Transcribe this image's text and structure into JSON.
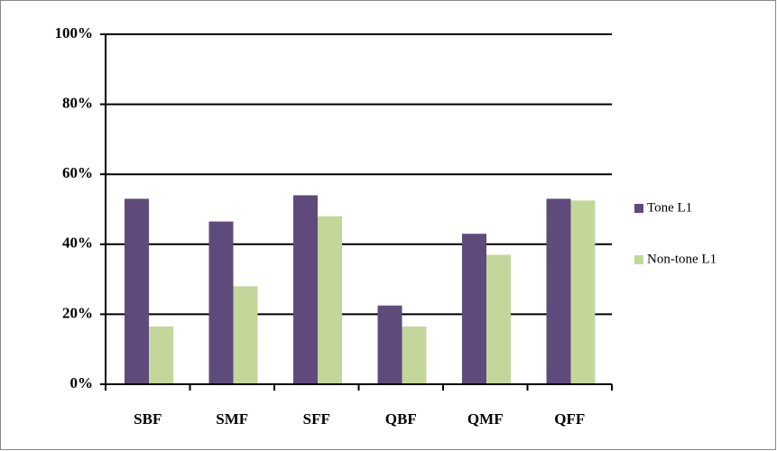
{
  "chart_data": {
    "type": "bar",
    "categories": [
      "SBF",
      "SMF",
      "SFF",
      "QBF",
      "QMF",
      "QFF"
    ],
    "series": [
      {
        "name": "Tone L1",
        "color": "#5f4b7b",
        "values": [
          53,
          46.5,
          54,
          22.5,
          43,
          53
        ]
      },
      {
        "name": "Non-tone L1",
        "color": "#c4d79b",
        "values": [
          16.5,
          28,
          48,
          16.5,
          37,
          52.5
        ]
      }
    ],
    "ylim": [
      0,
      100
    ],
    "yticks": [
      {
        "value": 0,
        "label": "0%"
      },
      {
        "value": 20,
        "label": "20%"
      },
      {
        "value": 40,
        "label": "40%"
      },
      {
        "value": 60,
        "label": "60%"
      },
      {
        "value": 80,
        "label": "80%"
      },
      {
        "value": 100,
        "label": "100%"
      }
    ],
    "grid": true,
    "legend": "right"
  }
}
